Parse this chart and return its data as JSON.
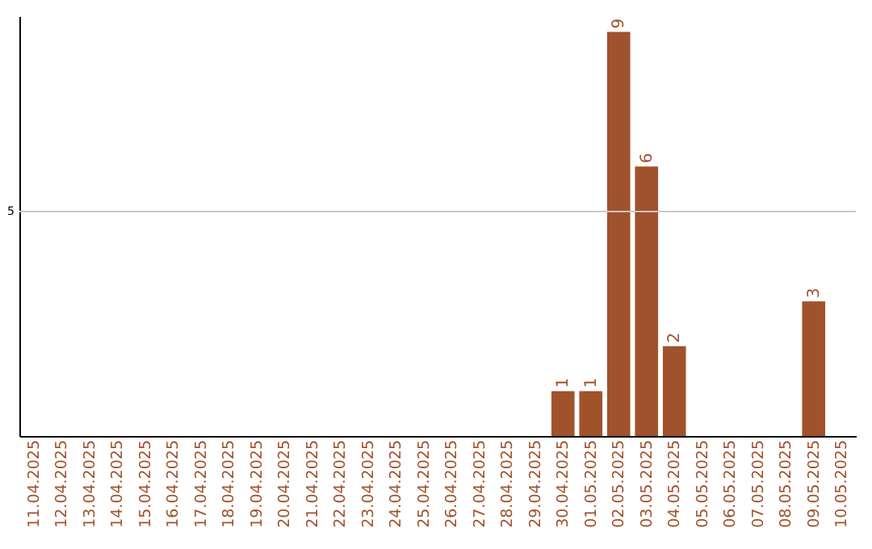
{
  "chart_data": {
    "type": "bar",
    "categories": [
      "11.04.2025",
      "12.04.2025",
      "13.04.2025",
      "14.04.2025",
      "15.04.2025",
      "16.04.2025",
      "17.04.2025",
      "18.04.2025",
      "19.04.2025",
      "20.04.2025",
      "21.04.2025",
      "22.04.2025",
      "23.04.2025",
      "24.04.2025",
      "25.04.2025",
      "26.04.2025",
      "27.04.2025",
      "28.04.2025",
      "29.04.2025",
      "30.04.2025",
      "01.05.2025",
      "02.05.2025",
      "03.05.2025",
      "04.05.2025",
      "05.05.2025",
      "06.05.2025",
      "07.05.2025",
      "08.05.2025",
      "09.05.2025",
      "10.05.2025"
    ],
    "values": [
      null,
      null,
      null,
      null,
      null,
      null,
      null,
      null,
      null,
      null,
      null,
      null,
      null,
      null,
      null,
      null,
      null,
      null,
      null,
      1,
      1,
      9,
      6,
      2,
      null,
      null,
      null,
      null,
      3,
      null
    ],
    "data_labels": true,
    "color": "#a0522d",
    "ylim": [
      0,
      9.35
    ],
    "ref_lines": [
      {
        "axis": "y",
        "value": 5,
        "label": "5",
        "color": "#c8c8c8"
      }
    ]
  }
}
